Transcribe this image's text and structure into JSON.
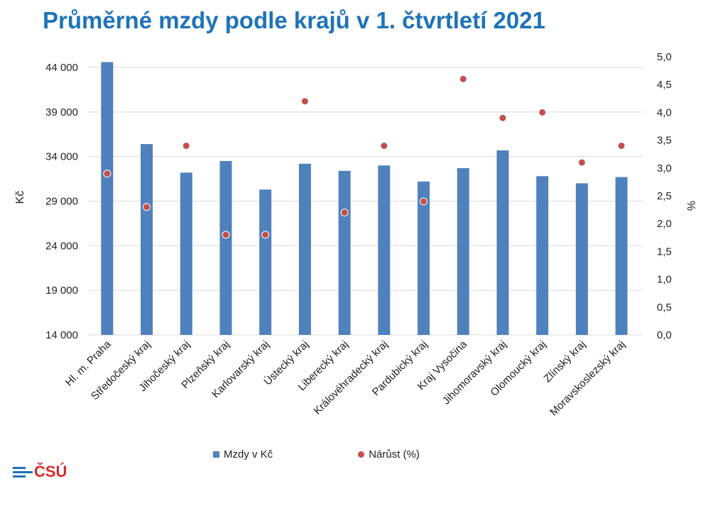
{
  "title": "Průměrné mzdy podle krajů v 1. čtvrtletí 2021",
  "logo_text": "ČSÚ",
  "chart_data": {
    "type": "bar",
    "categories": [
      "Hl. m. Praha",
      "Středočeský kraj",
      "Jihočeský kraj",
      "Plzeňský kraj",
      "Karlovarský kraj",
      "Ústecký kraj",
      "Liberecký kraj",
      "Královéhradecký kraj",
      "Pardubický kraj",
      "Kraj Vysočina",
      "Jihomoravský kraj",
      "Olomoucký kraj",
      "Zlínský kraj",
      "Moravskoslezský kraj"
    ],
    "series": [
      {
        "name": "Mzdy v Kč",
        "type": "bar",
        "axis": "left",
        "color": "#4f81bd",
        "values": [
          44600,
          35400,
          32200,
          33500,
          30300,
          33200,
          32400,
          33000,
          31200,
          32700,
          34700,
          31800,
          31000,
          31700
        ]
      },
      {
        "name": "Nárůst (%)",
        "type": "scatter",
        "axis": "right",
        "color": "#c0504d",
        "values": [
          2.9,
          2.3,
          3.4,
          1.8,
          1.8,
          4.2,
          2.2,
          3.4,
          2.4,
          4.6,
          3.9,
          4.0,
          3.1,
          3.4
        ]
      }
    ],
    "ylabel": "Kč",
    "y2label": "%",
    "ylim": [
      14000,
      45000
    ],
    "y2lim": [
      0,
      5.0
    ],
    "yticks": [
      "14 000",
      "19 000",
      "24 000",
      "29 000",
      "34 000",
      "39 000",
      "44 000"
    ],
    "y2ticks": [
      "0,0",
      "0,5",
      "1,0",
      "1,5",
      "2,0",
      "2,5",
      "3,0",
      "3,5",
      "4,0",
      "4,5",
      "5,0"
    ],
    "grid": true,
    "legend": "bottom"
  }
}
